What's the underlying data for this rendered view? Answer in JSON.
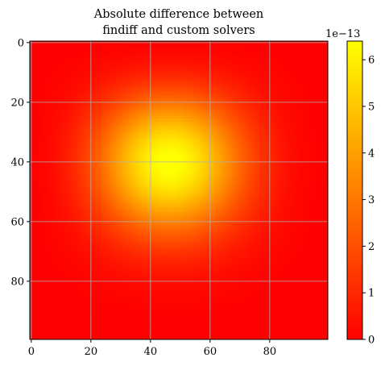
{
  "chart_data": {
    "type": "heatmap",
    "title_lines": [
      "Absolute difference between",
      "findiff and custom solvers"
    ],
    "xlabel": "",
    "ylabel": "",
    "xlim": [
      -0.5,
      99.5
    ],
    "ylim": [
      99.5,
      -0.5
    ],
    "x_ticks": [
      0,
      20,
      40,
      60,
      80
    ],
    "y_ticks": [
      0,
      20,
      40,
      60,
      80
    ],
    "grid": true,
    "grid_color": "#b0b0b0",
    "colormap": "autumn",
    "colormap_stops": [
      "#ff0000",
      "#ffff00"
    ],
    "grid_shape": [
      100,
      100
    ],
    "peak_location": {
      "x": 45,
      "y": 37
    },
    "values_description_peak": 6.4e-13,
    "colorbar": {
      "min": 0,
      "max": 6.4,
      "ticks": [
        0,
        1,
        2,
        3,
        4,
        5,
        6
      ],
      "exponent_label": "1e−13",
      "placement": "right"
    }
  }
}
